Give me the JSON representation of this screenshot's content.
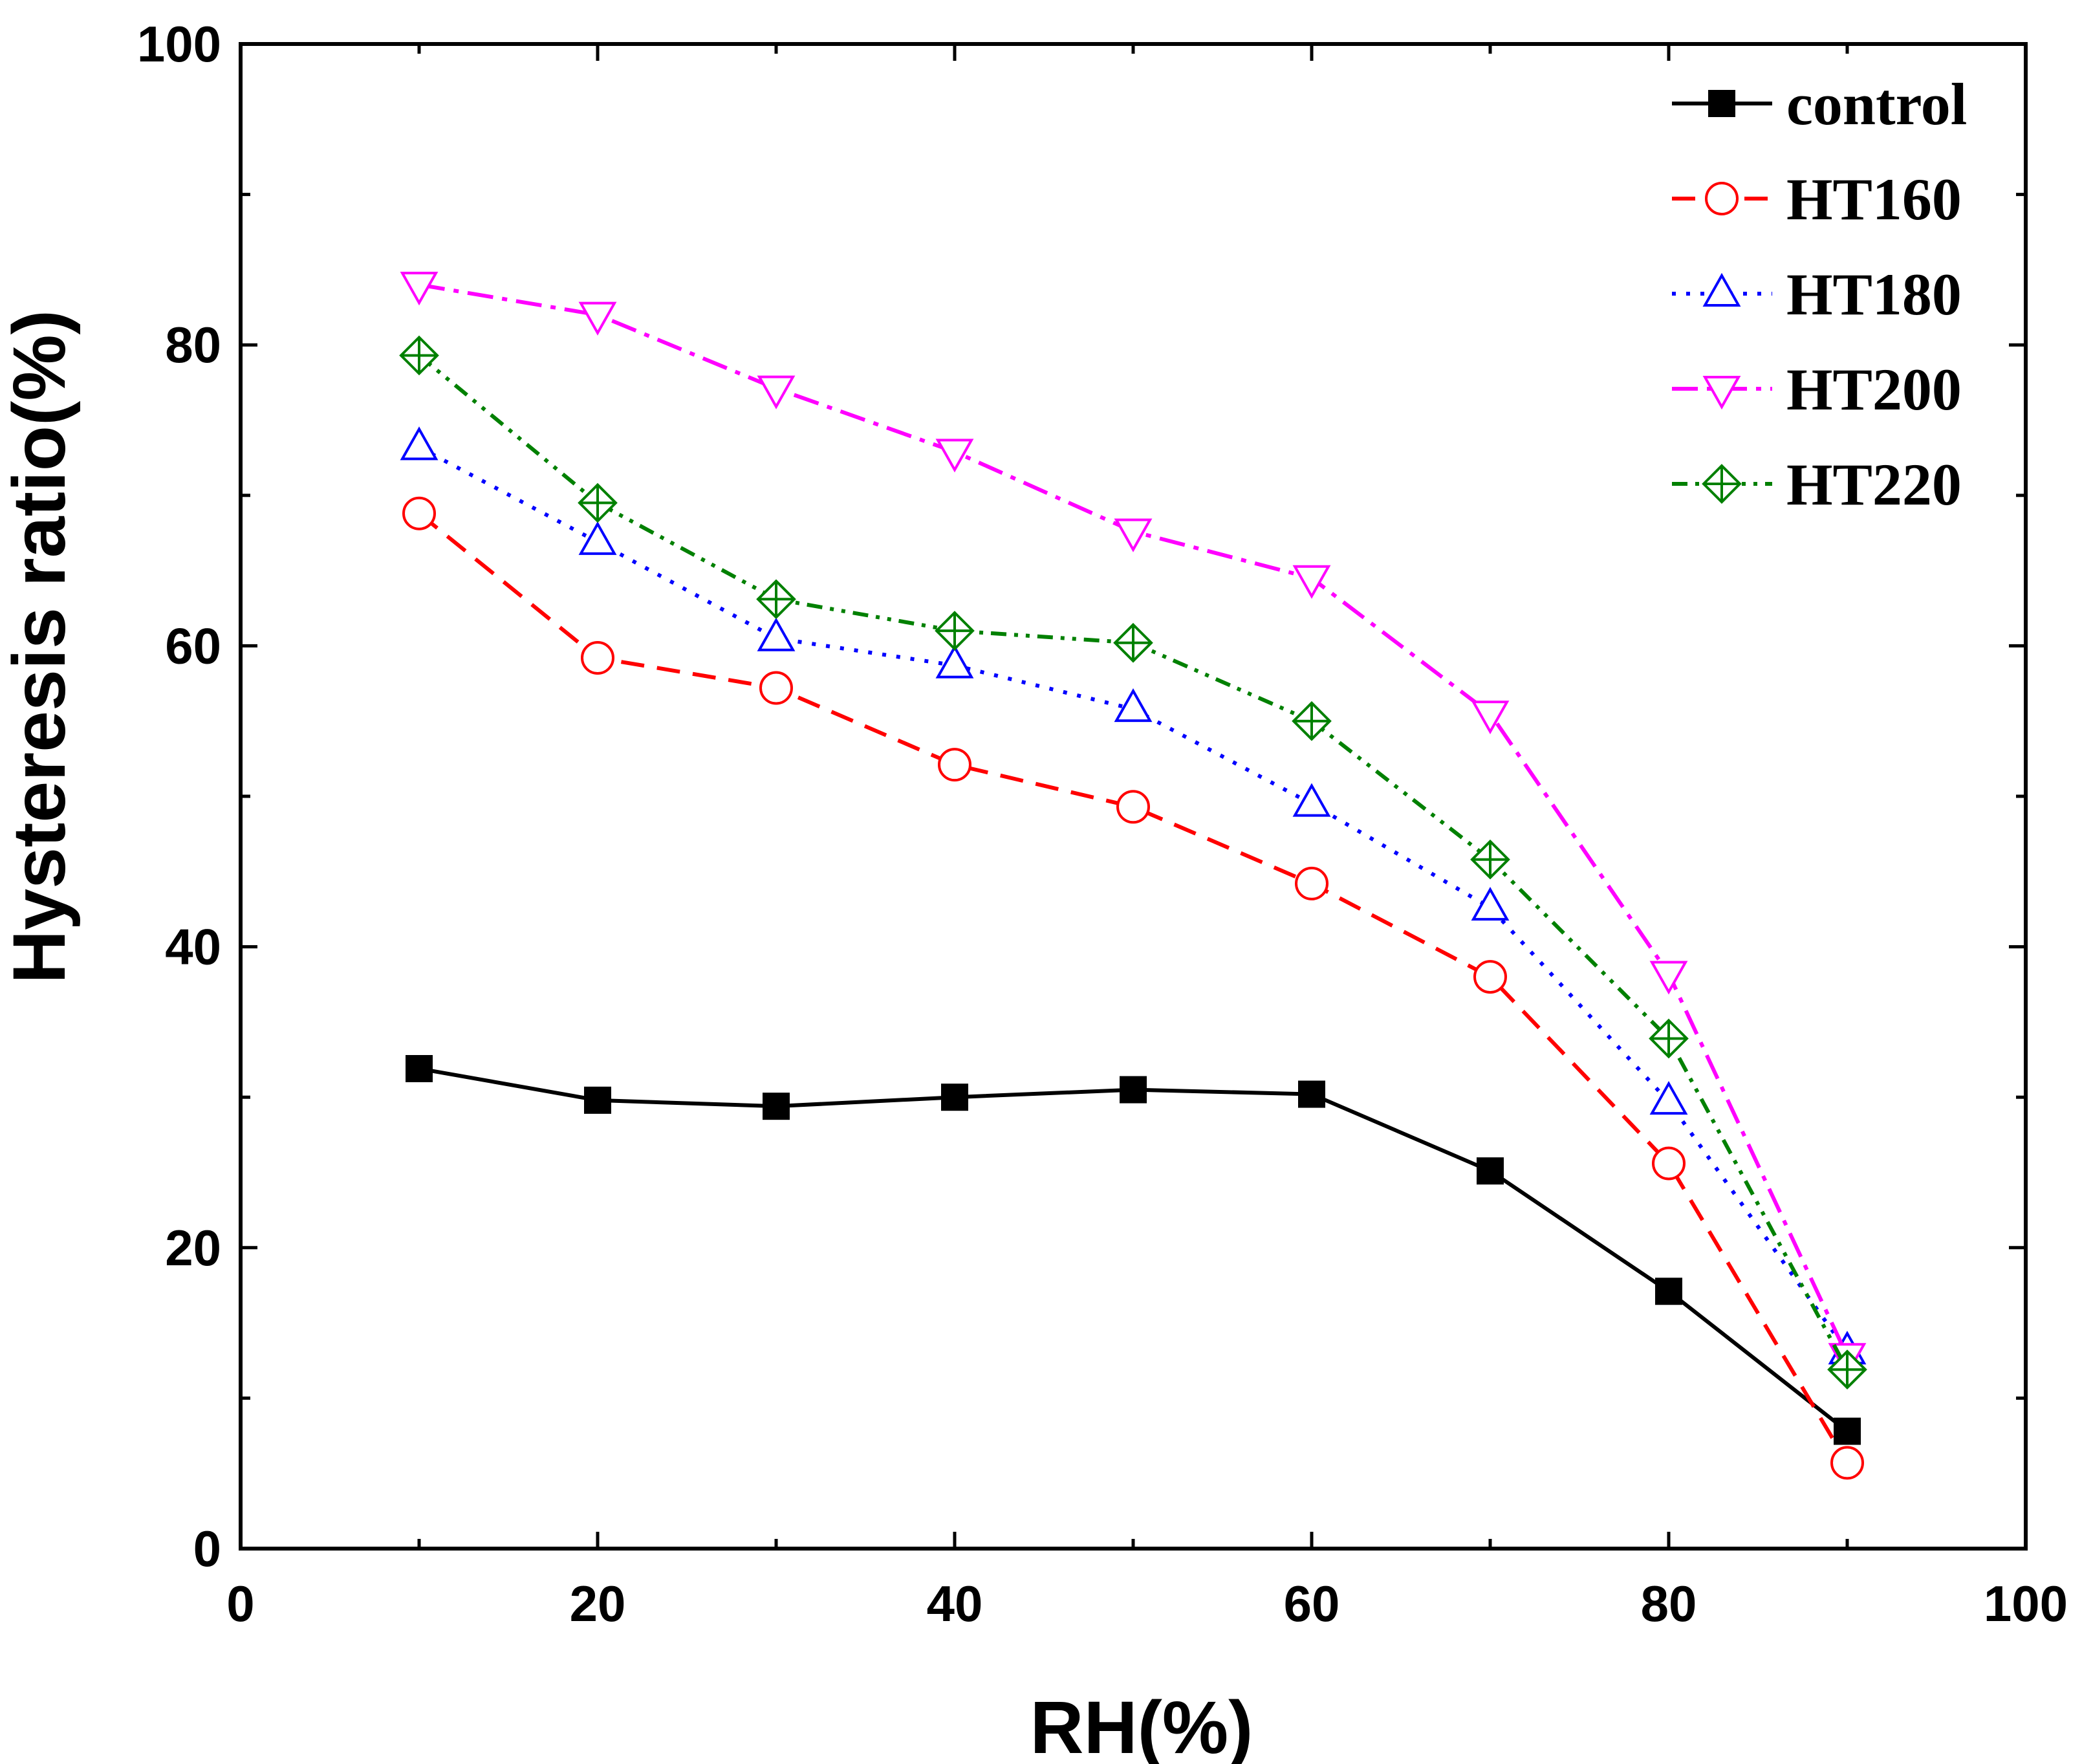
{
  "chart_data": {
    "type": "line",
    "title": "",
    "xlabel": "RH(%)",
    "ylabel": "Hysteresis ratio(%)",
    "xlim": [
      0,
      100
    ],
    "ylim": [
      0,
      100
    ],
    "xticks": [
      0,
      20,
      40,
      60,
      80,
      100
    ],
    "yticks": [
      0,
      20,
      40,
      60,
      80,
      100
    ],
    "grid": false,
    "legend_position": "top-right",
    "x": [
      10,
      20,
      30,
      40,
      50,
      60,
      70,
      80,
      90
    ],
    "series": [
      {
        "name": "control",
        "color": "#000000",
        "marker": "filled-square",
        "line_style": "solid",
        "values": [
          31.9,
          29.8,
          29.4,
          30.0,
          30.5,
          30.2,
          25.1,
          17.1,
          7.8
        ]
      },
      {
        "name": "HT160",
        "color": "#ff0000",
        "marker": "open-circle",
        "line_style": "dashed",
        "values": [
          68.8,
          59.2,
          57.2,
          52.1,
          49.3,
          44.2,
          38.0,
          25.6,
          5.7
        ]
      },
      {
        "name": "HT180",
        "color": "#0000ff",
        "marker": "open-triangle-up",
        "line_style": "dotted",
        "values": [
          73.2,
          66.9,
          60.5,
          58.7,
          55.8,
          49.5,
          42.6,
          29.7,
          13.1
        ]
      },
      {
        "name": "HT200",
        "color": "#ff00ff",
        "marker": "open-triangle-down",
        "line_style": "dash-dot",
        "values": [
          84.0,
          82.0,
          77.1,
          72.9,
          67.6,
          64.5,
          55.5,
          38.2,
          12.8
        ]
      },
      {
        "name": "HT220",
        "color": "#008000",
        "marker": "crossed-diamond",
        "line_style": "dash-dot-dot",
        "values": [
          79.3,
          69.5,
          63.1,
          61.0,
          60.2,
          55.0,
          45.8,
          33.9,
          11.9
        ]
      }
    ]
  }
}
